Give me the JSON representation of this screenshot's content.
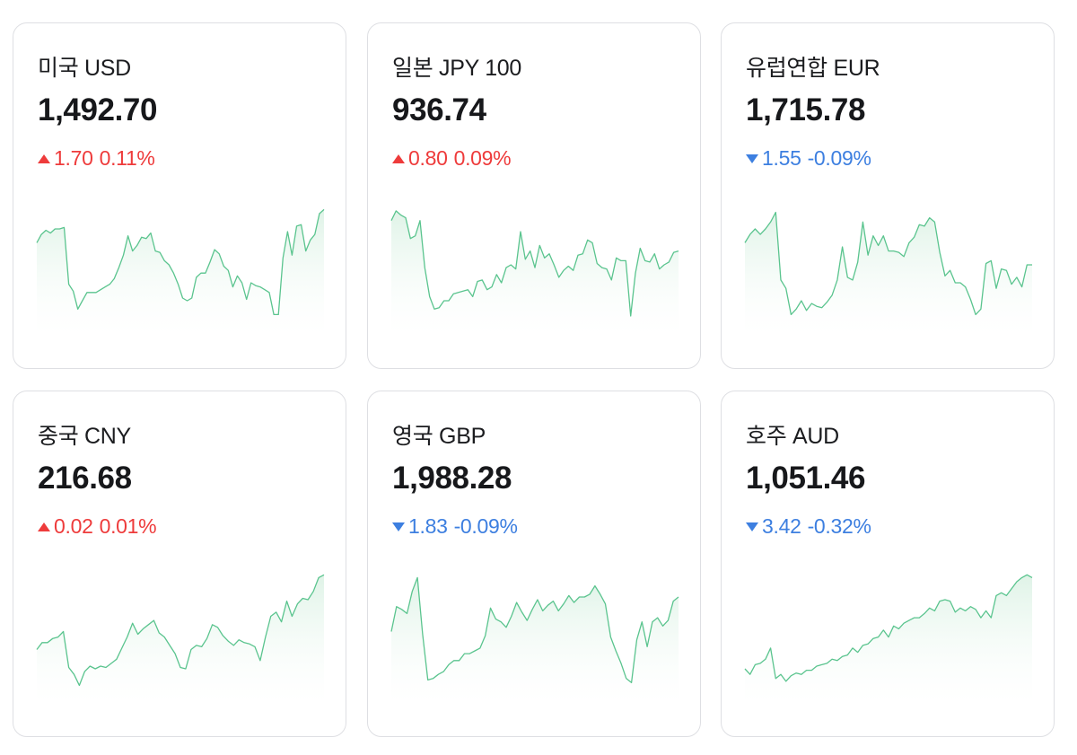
{
  "cards": [
    {
      "name": "미국 USD",
      "rate": "1,492.70",
      "direction": "up",
      "change": "1.70",
      "change_pct": "0.11%",
      "trend_icon": "triangle-up-icon",
      "chart_data": {
        "type": "area",
        "values": [
          0.66,
          0.72,
          0.75,
          0.73,
          0.76,
          0.76,
          0.77,
          0.36,
          0.31,
          0.18,
          0.24,
          0.3,
          0.3,
          0.3,
          0.32,
          0.34,
          0.36,
          0.4,
          0.48,
          0.57,
          0.71,
          0.6,
          0.64,
          0.7,
          0.69,
          0.73,
          0.6,
          0.59,
          0.53,
          0.5,
          0.44,
          0.36,
          0.26,
          0.24,
          0.26,
          0.41,
          0.44,
          0.44,
          0.52,
          0.61,
          0.58,
          0.49,
          0.46,
          0.34,
          0.42,
          0.37,
          0.25,
          0.37,
          0.35,
          0.34,
          0.32,
          0.3,
          0.14,
          0.14,
          0.55,
          0.74,
          0.57,
          0.78,
          0.79,
          0.6,
          0.68,
          0.72,
          0.87,
          0.9
        ]
      }
    },
    {
      "name": "일본 JPY 100",
      "rate": "936.74",
      "direction": "up",
      "change": "0.80",
      "change_pct": "0.09%",
      "trend_icon": "triangle-up-icon",
      "chart_data": {
        "type": "area",
        "values": [
          0.82,
          0.89,
          0.86,
          0.84,
          0.69,
          0.71,
          0.82,
          0.48,
          0.27,
          0.18,
          0.19,
          0.24,
          0.24,
          0.29,
          0.3,
          0.31,
          0.32,
          0.27,
          0.38,
          0.39,
          0.32,
          0.34,
          0.43,
          0.37,
          0.48,
          0.5,
          0.47,
          0.74,
          0.54,
          0.6,
          0.48,
          0.64,
          0.55,
          0.58,
          0.5,
          0.41,
          0.46,
          0.49,
          0.46,
          0.57,
          0.58,
          0.68,
          0.66,
          0.51,
          0.48,
          0.47,
          0.39,
          0.55,
          0.53,
          0.53,
          0.13,
          0.44,
          0.62,
          0.53,
          0.52,
          0.58,
          0.47,
          0.5,
          0.52,
          0.59,
          0.6
        ]
      }
    },
    {
      "name": "유럽연합 EUR",
      "rate": "1,715.78",
      "direction": "down",
      "change": "1.55",
      "change_pct": "-0.09%",
      "trend_icon": "triangle-down-icon",
      "chart_data": {
        "type": "area",
        "values": [
          0.66,
          0.72,
          0.76,
          0.72,
          0.76,
          0.81,
          0.88,
          0.39,
          0.33,
          0.14,
          0.18,
          0.24,
          0.17,
          0.22,
          0.2,
          0.19,
          0.23,
          0.28,
          0.39,
          0.63,
          0.41,
          0.39,
          0.52,
          0.81,
          0.57,
          0.71,
          0.64,
          0.71,
          0.6,
          0.6,
          0.59,
          0.56,
          0.66,
          0.7,
          0.79,
          0.78,
          0.84,
          0.81,
          0.59,
          0.42,
          0.46,
          0.37,
          0.37,
          0.34,
          0.25,
          0.14,
          0.18,
          0.51,
          0.53,
          0.33,
          0.47,
          0.46,
          0.36,
          0.41,
          0.34,
          0.5,
          0.5
        ]
      }
    },
    {
      "name": "중국 CNY",
      "rate": "216.68",
      "direction": "up",
      "change": "0.02",
      "change_pct": "0.01%",
      "trend_icon": "triangle-up-icon",
      "chart_data": {
        "type": "area",
        "values": [
          0.38,
          0.43,
          0.43,
          0.46,
          0.47,
          0.51,
          0.25,
          0.2,
          0.12,
          0.22,
          0.26,
          0.24,
          0.26,
          0.25,
          0.28,
          0.31,
          0.39,
          0.47,
          0.57,
          0.49,
          0.53,
          0.56,
          0.59,
          0.5,
          0.47,
          0.41,
          0.35,
          0.25,
          0.24,
          0.38,
          0.41,
          0.4,
          0.46,
          0.56,
          0.54,
          0.48,
          0.44,
          0.41,
          0.45,
          0.43,
          0.42,
          0.4,
          0.3,
          0.47,
          0.62,
          0.65,
          0.58,
          0.73,
          0.62,
          0.71,
          0.75,
          0.74,
          0.8,
          0.9,
          0.92
        ]
      }
    },
    {
      "name": "영국 GBP",
      "rate": "1,988.28",
      "direction": "down",
      "change": "1.83",
      "change_pct": "-0.09%",
      "trend_icon": "triangle-down-icon",
      "chart_data": {
        "type": "area",
        "values": [
          0.51,
          0.69,
          0.67,
          0.64,
          0.8,
          0.9,
          0.49,
          0.16,
          0.17,
          0.2,
          0.22,
          0.27,
          0.3,
          0.3,
          0.35,
          0.35,
          0.37,
          0.39,
          0.48,
          0.68,
          0.6,
          0.58,
          0.54,
          0.62,
          0.72,
          0.65,
          0.59,
          0.67,
          0.74,
          0.66,
          0.7,
          0.73,
          0.66,
          0.71,
          0.77,
          0.72,
          0.76,
          0.76,
          0.78,
          0.84,
          0.78,
          0.71,
          0.47,
          0.37,
          0.28,
          0.17,
          0.14,
          0.45,
          0.58,
          0.4,
          0.58,
          0.61,
          0.55,
          0.59,
          0.73,
          0.76
        ]
      }
    },
    {
      "name": "호주 AUD",
      "rate": "1,051.46",
      "direction": "down",
      "change": "3.42",
      "change_pct": "-0.32%",
      "trend_icon": "triangle-down-icon",
      "chart_data": {
        "type": "area",
        "values": [
          0.24,
          0.2,
          0.27,
          0.28,
          0.31,
          0.39,
          0.17,
          0.2,
          0.15,
          0.19,
          0.21,
          0.2,
          0.23,
          0.23,
          0.26,
          0.27,
          0.28,
          0.31,
          0.3,
          0.33,
          0.34,
          0.39,
          0.36,
          0.41,
          0.42,
          0.46,
          0.47,
          0.52,
          0.47,
          0.55,
          0.53,
          0.57,
          0.59,
          0.61,
          0.61,
          0.64,
          0.68,
          0.66,
          0.73,
          0.74,
          0.73,
          0.65,
          0.68,
          0.66,
          0.69,
          0.67,
          0.61,
          0.66,
          0.61,
          0.77,
          0.79,
          0.77,
          0.82,
          0.87,
          0.9,
          0.92,
          0.9
        ]
      }
    }
  ],
  "colors": {
    "up": "#ee3b3b",
    "down": "#3d7fe0",
    "spark_line": "#5ac48e",
    "spark_fill": "#dff3e7",
    "card_border": "#dedfe3",
    "text": "#17181b"
  }
}
